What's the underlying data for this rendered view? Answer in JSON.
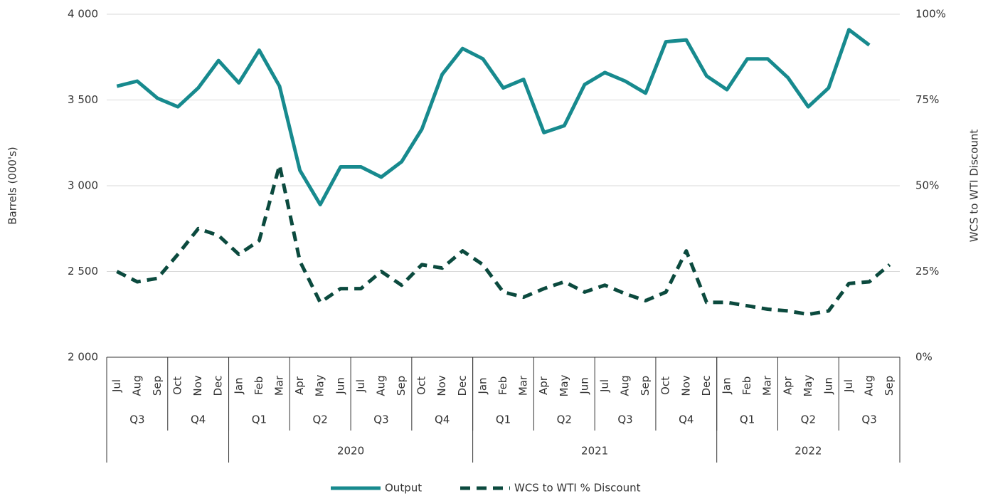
{
  "chart_data": {
    "type": "line",
    "y_label": "Barrels (000's)",
    "y2_label": "WCS to WTI Discount",
    "categories": [
      "Jul",
      "Aug",
      "Sep",
      "Oct",
      "Nov",
      "Dec",
      "Jan",
      "Feb",
      "Mar",
      "Apr",
      "May",
      "Jun",
      "Jul",
      "Aug",
      "Sep",
      "Oct",
      "Nov",
      "Dec",
      "Jan",
      "Feb",
      "Mar",
      "Apr",
      "May",
      "Jun",
      "Jul",
      "Aug",
      "Sep",
      "Oct",
      "Nov",
      "Dec",
      "Jan",
      "Feb",
      "Mar",
      "Apr",
      "May",
      "Jun",
      "Jul",
      "Aug",
      "Sep"
    ],
    "quarters": [
      "Q3",
      "Q4",
      "Q1",
      "Q2",
      "Q3",
      "Q4",
      "Q1",
      "Q2",
      "Q3",
      "Q4",
      "Q1",
      "Q2",
      "Q3"
    ],
    "years": [
      null,
      "2020",
      "2021",
      "2022"
    ],
    "series": [
      {
        "name": "Output",
        "color": "#178a8e",
        "dash": false,
        "values": [
          3580,
          3610,
          3510,
          3460,
          3570,
          3730,
          3600,
          3790,
          3580,
          3090,
          2890,
          3110,
          3110,
          3050,
          3140,
          3330,
          3650,
          3800,
          3740,
          3570,
          3620,
          3310,
          3350,
          3590,
          3660,
          3610,
          3540,
          3840,
          3850,
          3640,
          3560,
          3740,
          3740,
          3630,
          3460,
          3570,
          3910,
          3820,
          null
        ]
      },
      {
        "name": "WCS to WTI % Discount",
        "color": "#0b4a3e",
        "dash": true,
        "axis": "y2",
        "values": [
          25,
          22,
          23,
          30,
          37.5,
          35.5,
          30,
          34,
          56,
          28,
          16,
          20,
          20,
          25,
          21,
          27,
          26,
          31,
          27,
          19,
          17.5,
          20,
          22,
          19,
          21,
          18.5,
          16.5,
          19,
          31,
          16,
          16,
          15,
          14,
          13.5,
          12.5,
          13.5,
          21.5,
          22,
          27
        ]
      }
    ],
    "ylim": [
      2000,
      4000
    ],
    "yticks": [
      {
        "value": 2000,
        "label": "2 000"
      },
      {
        "value": 2500,
        "label": "2 500"
      },
      {
        "value": 3000,
        "label": "3 000"
      },
      {
        "value": 3500,
        "label": "3 500"
      },
      {
        "value": 4000,
        "label": "4 000"
      }
    ],
    "y2lim": [
      0,
      100
    ],
    "y2ticks": [
      {
        "value": 0,
        "label": "0%"
      },
      {
        "value": 25,
        "label": "25%"
      },
      {
        "value": 50,
        "label": "50%"
      },
      {
        "value": 75,
        "label": "75%"
      },
      {
        "value": 100,
        "label": "100%"
      }
    ],
    "grid": true
  }
}
